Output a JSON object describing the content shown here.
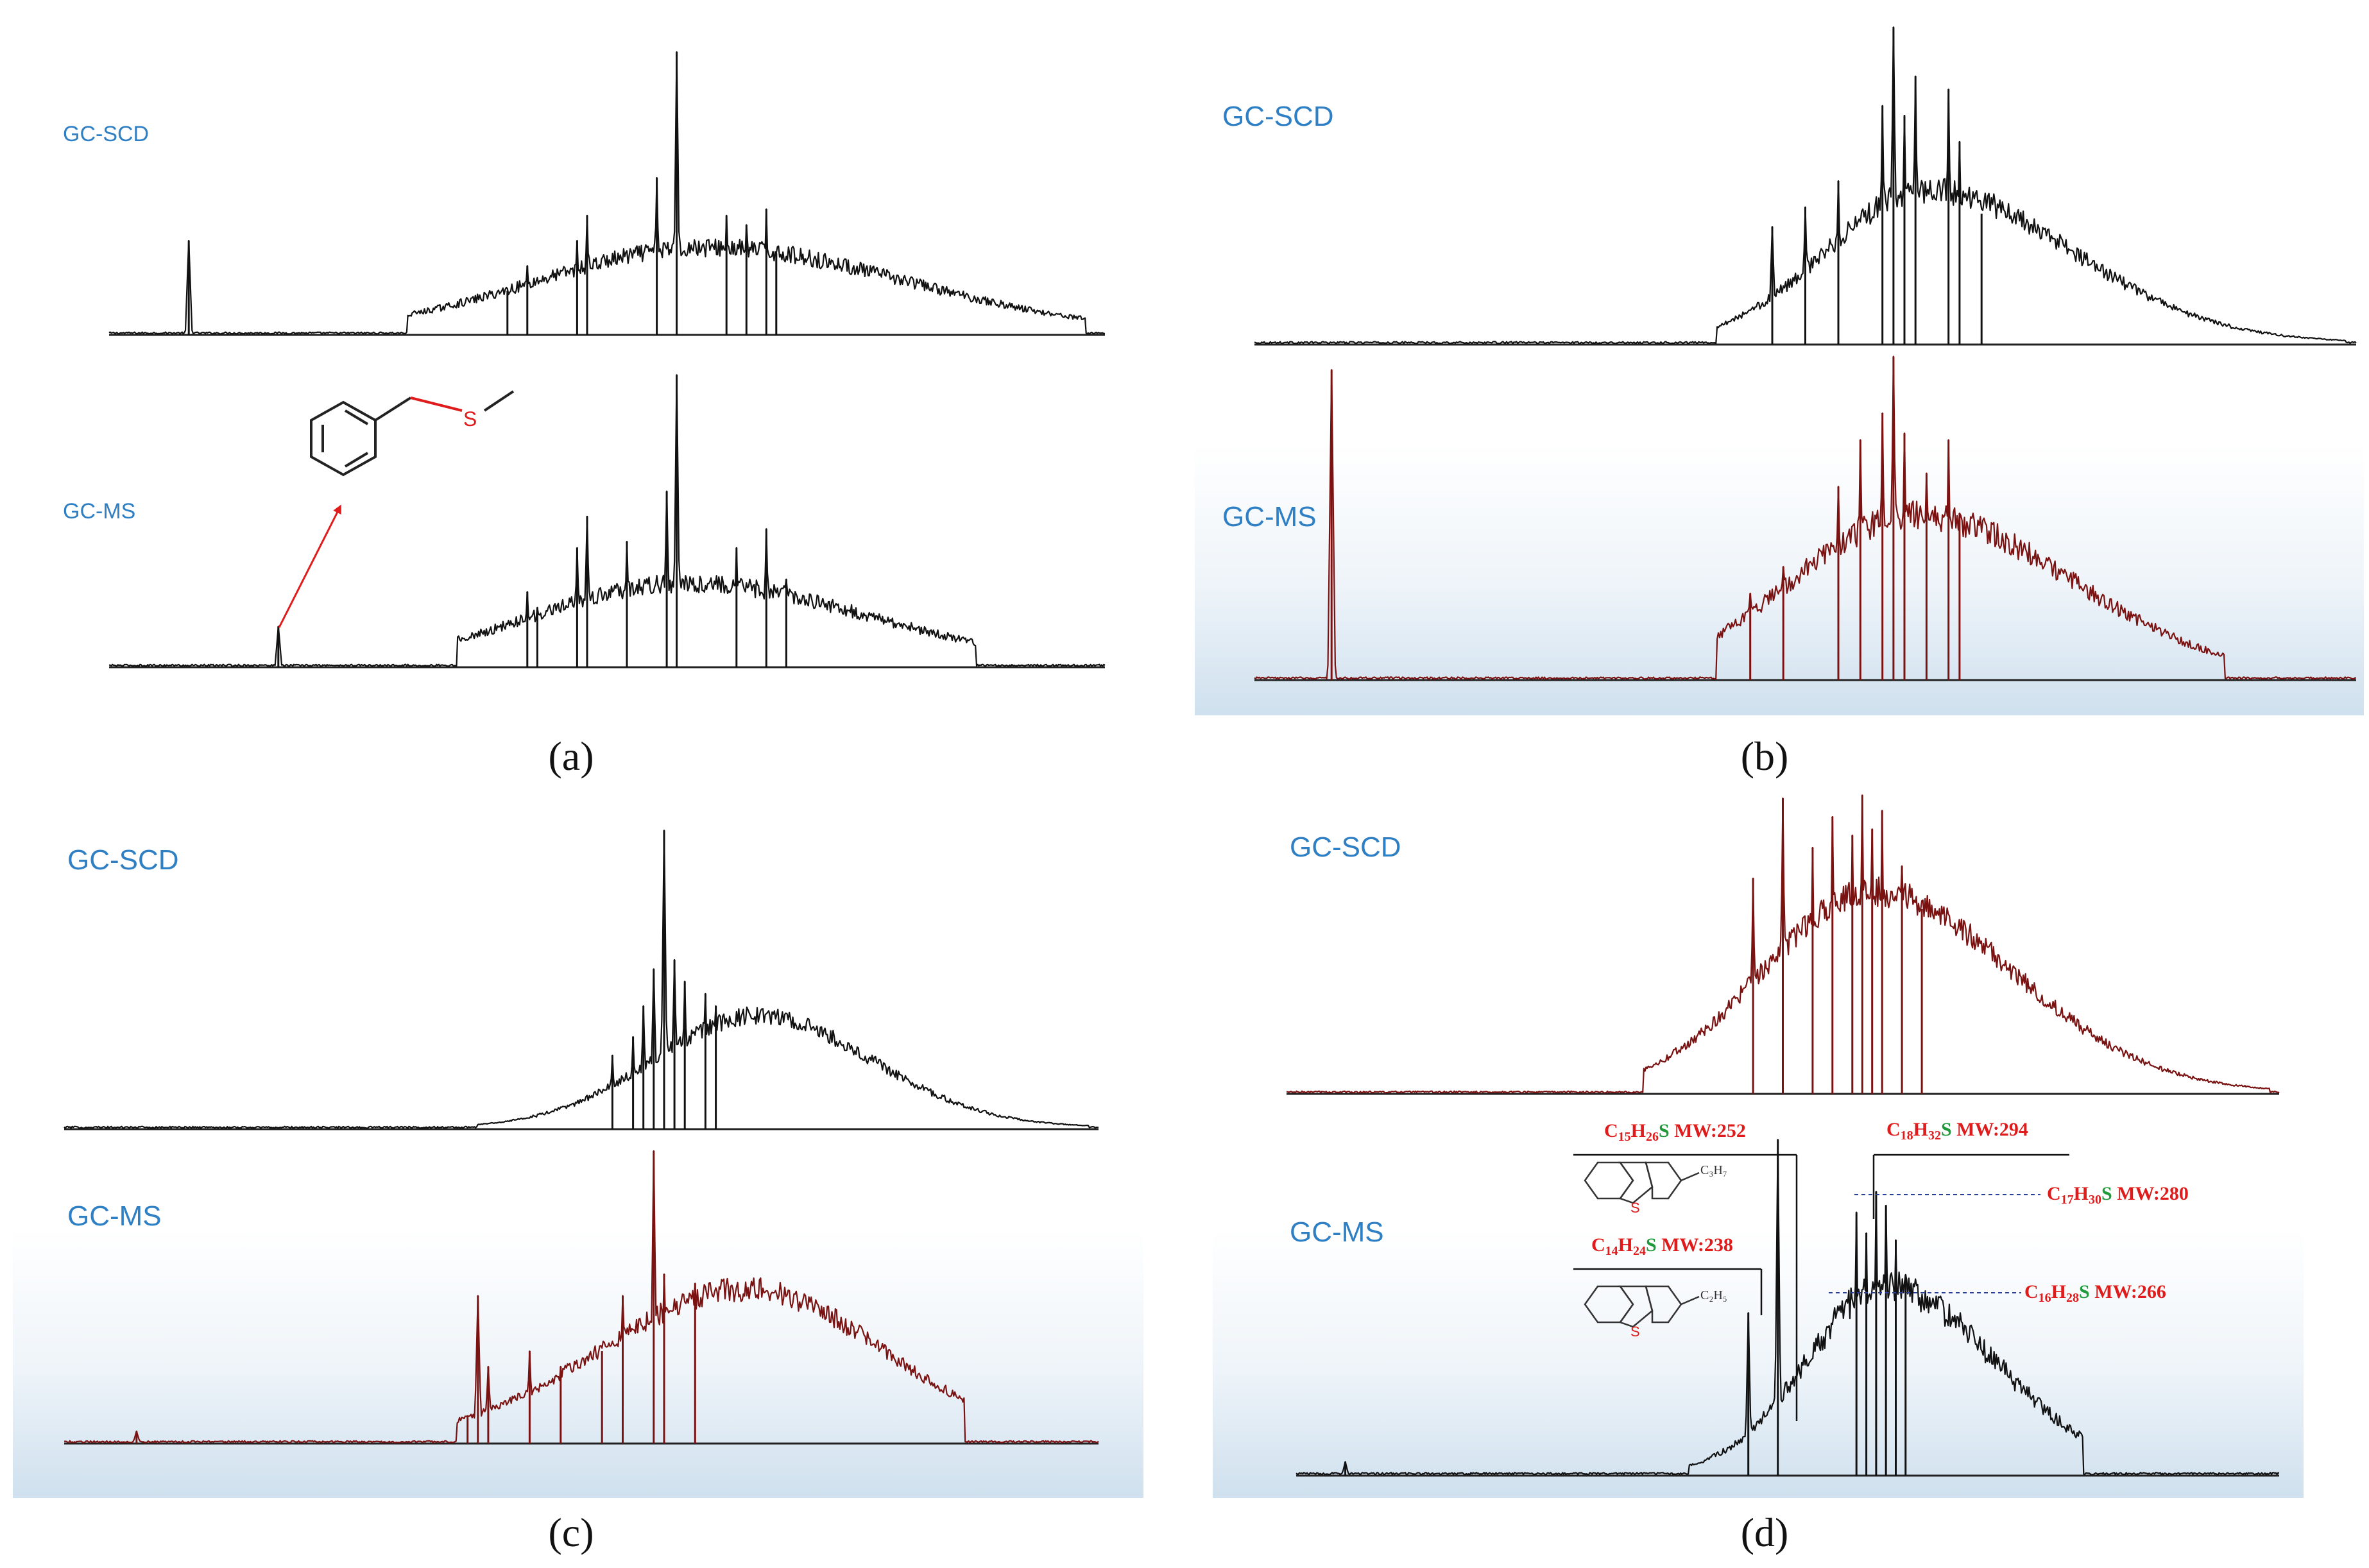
{
  "figure": {
    "description_note": "Four-panel GC-SCD vs GC-MS chromatogram comparison",
    "colors": {
      "scd_black": "#111111",
      "ms_darkred": "#7b1212",
      "label_blue": "#2f7fc4",
      "annotation_red": "#e01b1b",
      "sulfur_green": "#1f9a3a",
      "guide_blue": "#2a3f9a"
    }
  },
  "chart_data": [
    {
      "type": "line",
      "panel": "a",
      "caption": "(a)",
      "xlabel": "",
      "ylabel": "",
      "xlim": [
        0,
        100
      ],
      "ylim": [
        0,
        100
      ],
      "series": [
        {
          "name": "GC-SCD",
          "color": "#111111",
          "envelope": {
            "start": 30,
            "peak_x": 60,
            "peak_y": 26,
            "end": 98,
            "width_left": 17,
            "width_right": 20
          },
          "noise": 6,
          "spikes": [
            [
              8,
              30
            ],
            [
              40,
              14
            ],
            [
              42,
              22
            ],
            [
              47,
              30
            ],
            [
              48,
              38
            ],
            [
              55,
              50
            ],
            [
              57,
              90
            ],
            [
              62,
              38
            ],
            [
              64,
              35
            ],
            [
              66,
              40
            ],
            [
              67,
              26
            ]
          ]
        },
        {
          "name": "GC-MS",
          "color": "#111111",
          "envelope": {
            "start": 35,
            "peak_x": 58,
            "peak_y": 25,
            "end": 87,
            "width_left": 15,
            "width_right": 18
          },
          "noise": 6,
          "spikes": [
            [
              17,
              13
            ],
            [
              42,
              24
            ],
            [
              43,
              19
            ],
            [
              47,
              38
            ],
            [
              48,
              48
            ],
            [
              52,
              40
            ],
            [
              56,
              56
            ],
            [
              57,
              93
            ],
            [
              63,
              38
            ],
            [
              66,
              44
            ],
            [
              68,
              28
            ]
          ],
          "annotation": {
            "type": "arrow-to-structure",
            "target_peak_x": 17,
            "molecule": "benzyl methyl sulfide",
            "heteroatom": "S"
          }
        }
      ]
    },
    {
      "type": "line",
      "panel": "b",
      "caption": "(b)",
      "xlabel": "",
      "ylabel": "",
      "xlim": [
        0,
        100
      ],
      "ylim": [
        0,
        100
      ],
      "series": [
        {
          "name": "GC-SCD",
          "color": "#111111",
          "envelope": {
            "start": 42,
            "peak_x": 61,
            "peak_y": 45,
            "end": 99,
            "width_left": 9,
            "width_right": 13
          },
          "noise": 8,
          "spikes": [
            [
              47,
              36
            ],
            [
              50,
              42
            ],
            [
              53,
              50
            ],
            [
              57,
              73
            ],
            [
              58,
              97
            ],
            [
              59,
              70
            ],
            [
              60,
              82
            ],
            [
              63,
              78
            ],
            [
              64,
              62
            ],
            [
              66,
              40
            ]
          ]
        },
        {
          "name": "GC-MS",
          "color": "#7b1212",
          "envelope": {
            "start": 42,
            "peak_x": 60,
            "peak_y": 47,
            "end": 88,
            "width_left": 11,
            "width_right": 14
          },
          "noise": 9,
          "spikes": [
            [
              7,
              93
            ],
            [
              45,
              26
            ],
            [
              48,
              34
            ],
            [
              53,
              58
            ],
            [
              55,
              72
            ],
            [
              57,
              80
            ],
            [
              58,
              97
            ],
            [
              59,
              74
            ],
            [
              61,
              62
            ],
            [
              63,
              72
            ],
            [
              64,
              50
            ]
          ]
        }
      ]
    },
    {
      "type": "line",
      "panel": "c",
      "caption": "(c)",
      "xlabel": "",
      "ylabel": "",
      "xlim": [
        0,
        100
      ],
      "ylim": [
        0,
        100
      ],
      "series": [
        {
          "name": "GC-SCD",
          "color": "#111111",
          "envelope": {
            "start": 40,
            "peak_x": 67,
            "peak_y": 35,
            "end": 99,
            "width_left": 10,
            "width_right": 11
          },
          "noise": 6,
          "spikes": [
            [
              53,
              24
            ],
            [
              55,
              30
            ],
            [
              56,
              40
            ],
            [
              57,
              52
            ],
            [
              58,
              97
            ],
            [
              59,
              55
            ],
            [
              60,
              48
            ],
            [
              62,
              44
            ],
            [
              63,
              40
            ]
          ]
        },
        {
          "name": "GC-MS",
          "color": "#7b1212",
          "envelope": {
            "start": 38,
            "peak_x": 66,
            "peak_y": 48,
            "end": 87,
            "width_left": 14,
            "width_right": 13
          },
          "noise": 8,
          "spikes": [
            [
              7,
              4
            ],
            [
              39,
              9
            ],
            [
              40,
              48
            ],
            [
              41,
              25
            ],
            [
              45,
              30
            ],
            [
              48,
              25
            ],
            [
              52,
              30
            ],
            [
              54,
              48
            ],
            [
              57,
              95
            ],
            [
              58,
              55
            ],
            [
              61,
              52
            ]
          ]
        }
      ]
    },
    {
      "type": "line",
      "panel": "d",
      "caption": "(d)",
      "xlabel": "",
      "ylabel": "",
      "xlim": [
        0,
        100
      ],
      "ylim": [
        0,
        100
      ],
      "series": [
        {
          "name": "GC-SCD",
          "color": "#7b1212",
          "envelope": {
            "start": 36,
            "peak_x": 59,
            "peak_y": 63,
            "end": 99,
            "width_left": 11,
            "width_right": 14
          },
          "noise": 10,
          "spikes": [
            [
              47,
              70
            ],
            [
              50,
              96
            ],
            [
              53,
              80
            ],
            [
              55,
              90
            ],
            [
              57,
              84
            ],
            [
              58,
              97
            ],
            [
              59,
              86
            ],
            [
              60,
              92
            ],
            [
              62,
              74
            ],
            [
              64,
              60
            ]
          ]
        },
        {
          "name": "GC-MS",
          "color": "#111111",
          "envelope": {
            "start": 40,
            "peak_x": 60,
            "peak_y": 52,
            "end": 80,
            "width_left": 8,
            "width_right": 11
          },
          "noise": 10,
          "spikes": [
            [
              5,
              4
            ],
            [
              46,
              47
            ],
            [
              49,
              97
            ],
            [
              57,
              76
            ],
            [
              58,
              70
            ],
            [
              59,
              82
            ],
            [
              60,
              78
            ],
            [
              61,
              68
            ],
            [
              62,
              58
            ]
          ],
          "annotations": [
            {
              "formula_parts": [
                [
                  "C",
                  "15"
                ],
                [
                  "H",
                  "26"
                ]
              ],
              "heteroatom": "S",
              "mw": " MW:252",
              "peak_x": 49
            },
            {
              "formula_parts": [
                [
                  "C",
                  "18"
                ],
                [
                  "H",
                  "32"
                ]
              ],
              "heteroatom": "S",
              "mw": " MW:294",
              "peak_x": 57
            },
            {
              "formula_parts": [
                [
                  "C",
                  "17"
                ],
                [
                  "H",
                  "30"
                ]
              ],
              "heteroatom": "S",
              "mw": " MW:280",
              "peak_x": 58
            },
            {
              "formula_parts": [
                [
                  "C",
                  "14"
                ],
                [
                  "H",
                  "24"
                ]
              ],
              "heteroatom": "S",
              "mw": " MW:238",
              "peak_x": 46
            },
            {
              "formula_parts": [
                [
                  "C",
                  "16"
                ],
                [
                  "H",
                  "28"
                ]
              ],
              "heteroatom": "S",
              "mw": " MW:266",
              "peak_x": 60
            }
          ],
          "structure_labels": {
            "ethyl": "C₂H₅",
            "propyl": "C₃H₇",
            "heteroatom": "S"
          }
        }
      ]
    }
  ]
}
